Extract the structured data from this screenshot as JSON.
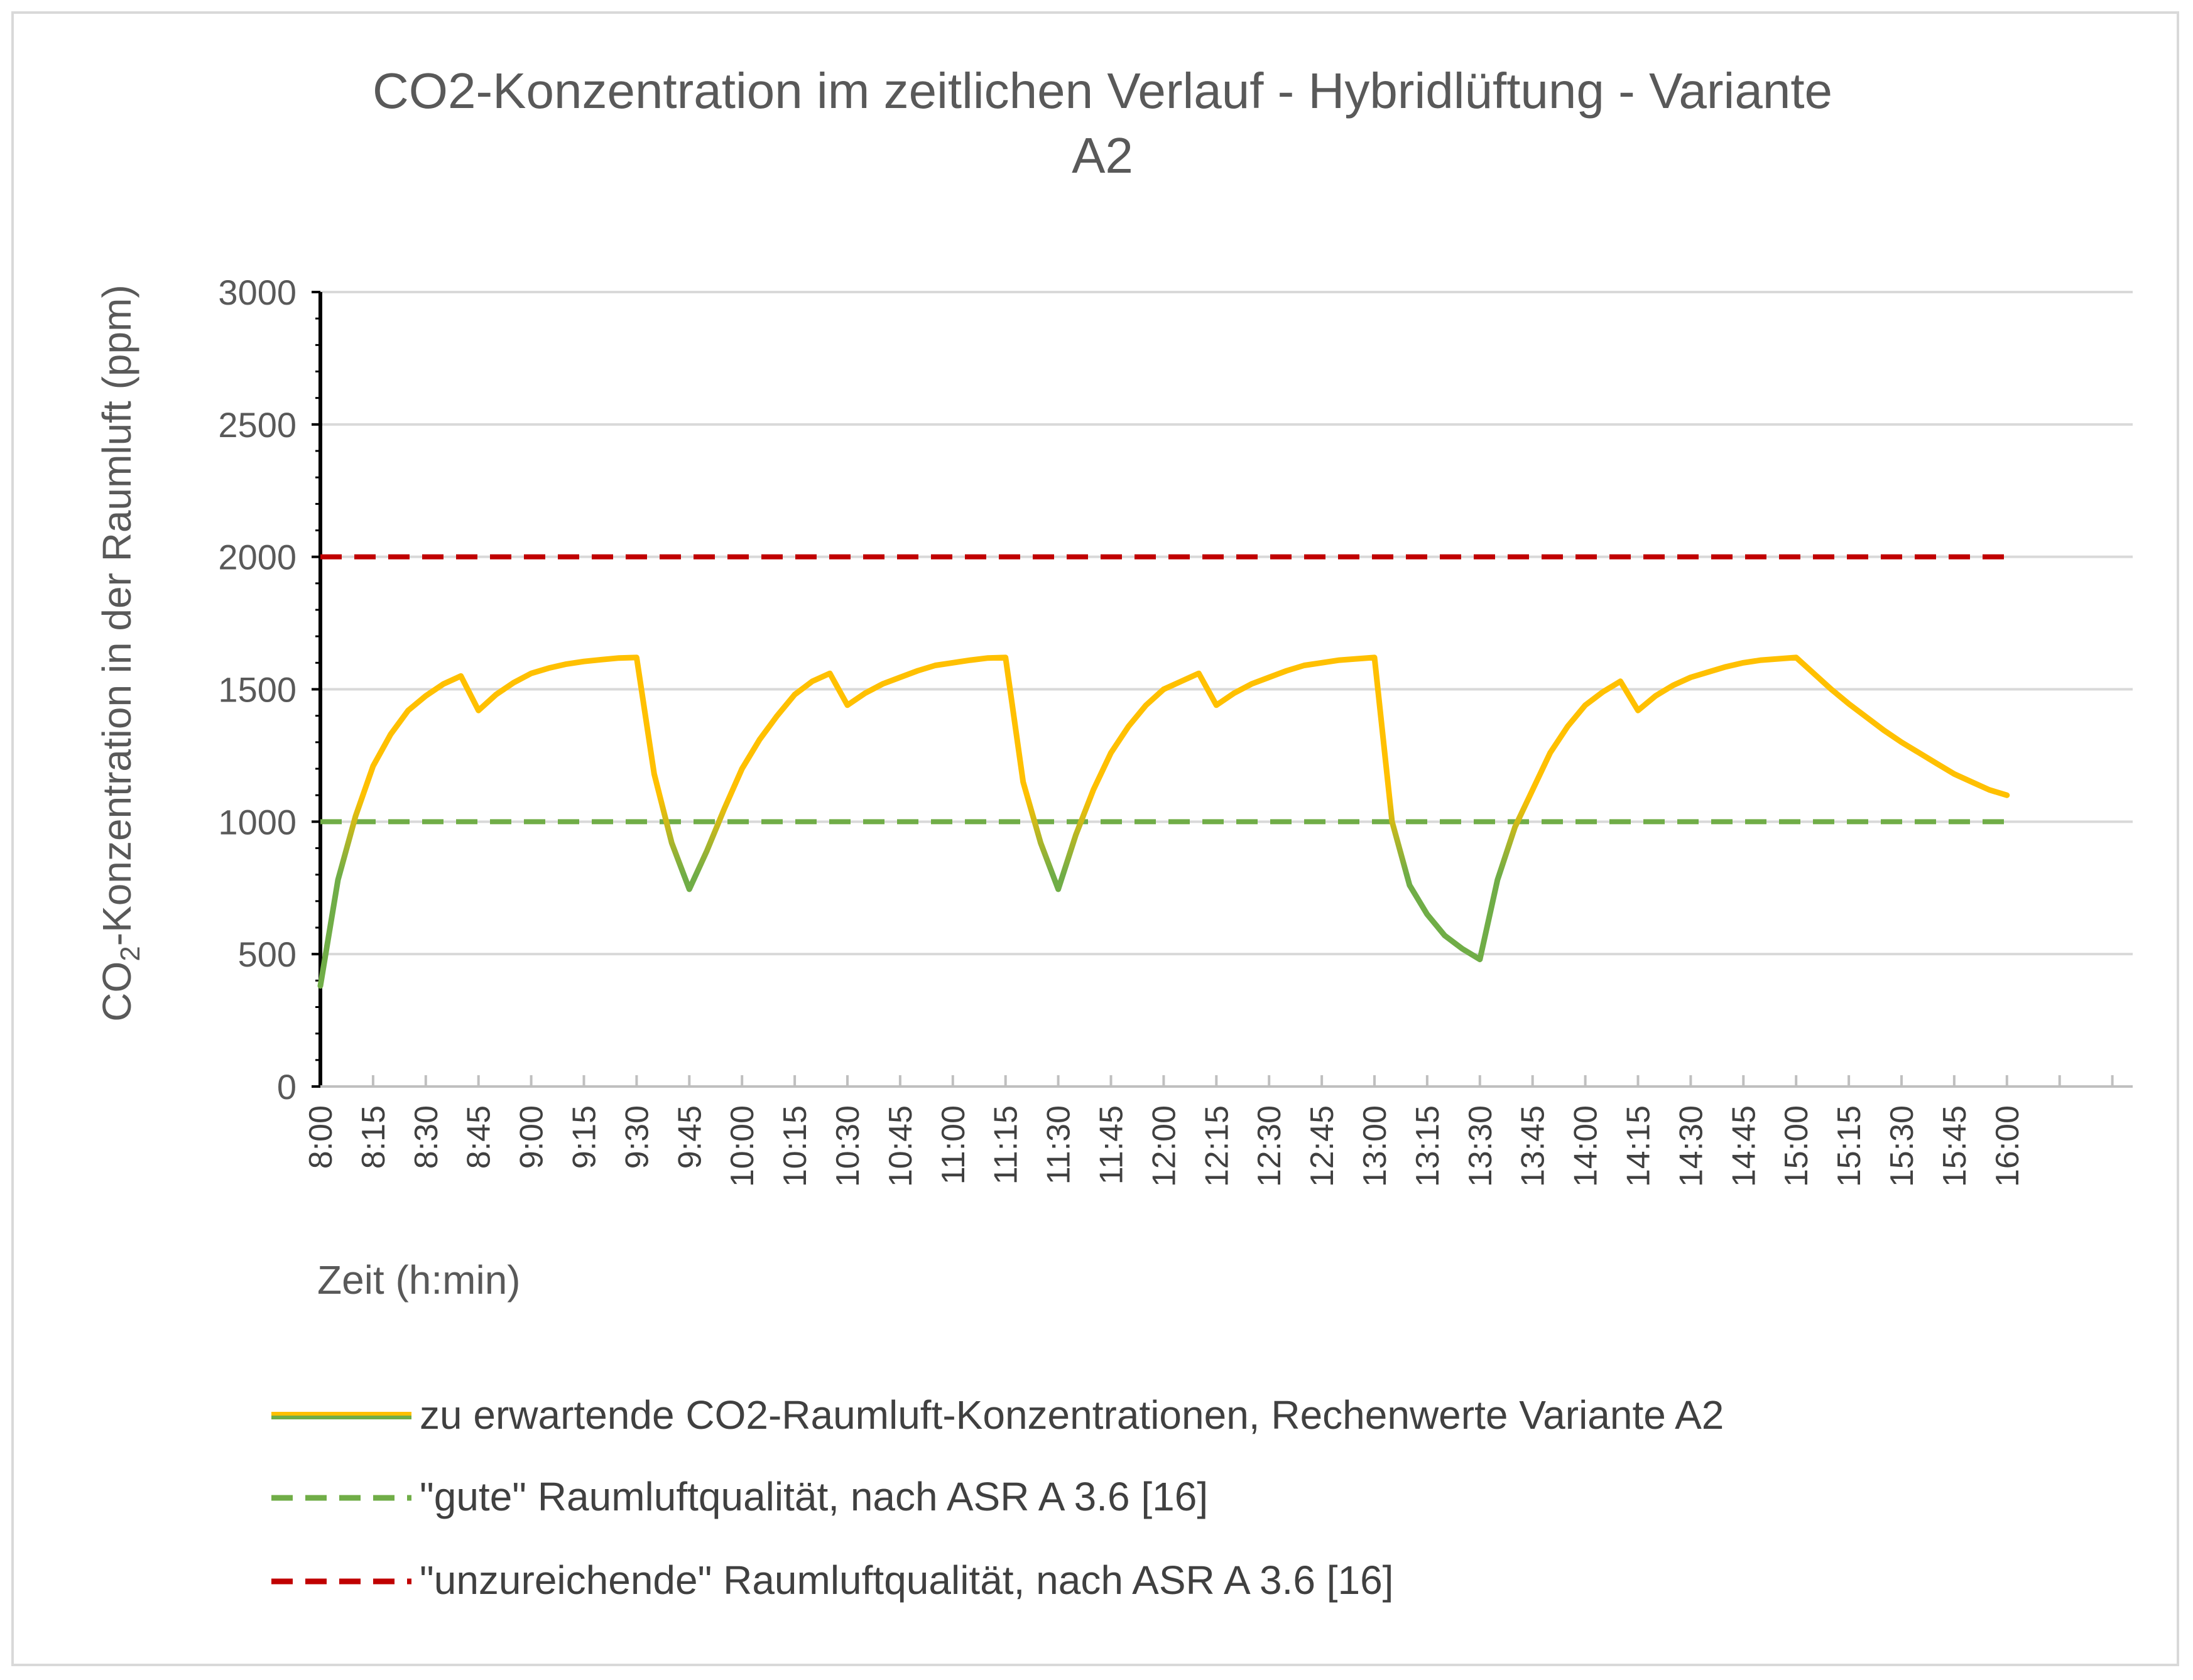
{
  "chart_data": {
    "type": "line",
    "title_lines": [
      "CO2-Konzentration im zeitlichen Verlauf - Hybridlüftung - Variante",
      "A2"
    ],
    "ylabel_prefix": "CO",
    "ylabel_sub": "2",
    "ylabel_suffix": "-Konzentration in der Raumluft (ppm)",
    "xlabel": "Zeit (h:min)",
    "ylim": [
      0,
      3000
    ],
    "yticks": [
      "0",
      "500",
      "1000",
      "1500",
      "2000",
      "2500",
      "3000"
    ],
    "x_categories": [
      "8:00",
      "8:15",
      "8:30",
      "8:45",
      "9:00",
      "9:15",
      "9:30",
      "9:45",
      "10:00",
      "10:15",
      "10:30",
      "10:45",
      "11:00",
      "11:15",
      "11:30",
      "11:45",
      "12:00",
      "12:15",
      "12:30",
      "12:45",
      "13:00",
      "13:15",
      "13:30",
      "13:45",
      "14:00",
      "14:15",
      "14:30",
      "14:45",
      "15:00",
      "15:15",
      "15:30",
      "15:45",
      "16:00"
    ],
    "grid": "horizontal",
    "legend_position": "bottom",
    "series": [
      {
        "name": "zu erwartende CO2-Raumluft-Konzentrationen, Rechenwerte Variante A2",
        "style": "solid",
        "color_high": "#ffc000",
        "color_low": "#70ad47",
        "x": [
          "8:00",
          "8:05",
          "8:10",
          "8:15",
          "8:20",
          "8:25",
          "8:30",
          "8:35",
          "8:40",
          "8:45",
          "8:50",
          "8:55",
          "9:00",
          "9:05",
          "9:10",
          "9:15",
          "9:20",
          "9:25",
          "9:30",
          "9:35",
          "9:40",
          "9:45",
          "9:50",
          "9:55",
          "10:00",
          "10:05",
          "10:10",
          "10:15",
          "10:20",
          "10:25",
          "10:30",
          "10:35",
          "10:40",
          "10:45",
          "10:50",
          "10:55",
          "11:00",
          "11:05",
          "11:10",
          "11:15",
          "11:20",
          "11:25",
          "11:30",
          "11:35",
          "11:40",
          "11:45",
          "11:50",
          "11:55",
          "12:00",
          "12:05",
          "12:10",
          "12:15",
          "12:20",
          "12:25",
          "12:30",
          "12:35",
          "12:40",
          "12:45",
          "12:50",
          "12:55",
          "13:00",
          "13:05",
          "13:10",
          "13:15",
          "13:20",
          "13:25",
          "13:30",
          "13:35",
          "13:40",
          "13:45",
          "13:50",
          "13:55",
          "14:00",
          "14:05",
          "14:10",
          "14:15",
          "14:20",
          "14:25",
          "14:30",
          "14:35",
          "14:40",
          "14:45",
          "14:50",
          "14:55",
          "15:00",
          "15:05",
          "15:10",
          "15:15",
          "15:20",
          "15:25",
          "15:30",
          "15:35",
          "15:40",
          "15:45",
          "15:50",
          "15:55",
          "16:00"
        ],
        "values": [
          380,
          780,
          1020,
          1210,
          1330,
          1420,
          1475,
          1520,
          1550,
          1420,
          1480,
          1525,
          1560,
          1580,
          1595,
          1605,
          1612,
          1618,
          1620,
          1180,
          920,
          745,
          890,
          1050,
          1200,
          1310,
          1400,
          1480,
          1530,
          1560,
          1440,
          1485,
          1520,
          1545,
          1570,
          1590,
          1600,
          1610,
          1618,
          1620,
          1150,
          920,
          745,
          950,
          1120,
          1260,
          1360,
          1440,
          1500,
          1530,
          1560,
          1440,
          1485,
          1520,
          1545,
          1570,
          1590,
          1600,
          1610,
          1615,
          1620,
          1000,
          760,
          650,
          570,
          520,
          480,
          780,
          980,
          1120,
          1260,
          1360,
          1440,
          1490,
          1530,
          1420,
          1475,
          1515,
          1545,
          1565,
          1585,
          1600,
          1610,
          1615,
          1620,
          1560,
          1500,
          1445,
          1395,
          1345,
          1300,
          1260,
          1220,
          1180,
          1150,
          1120,
          1100
        ]
      },
      {
        "name": "\"gute\" Raumluftqualität, nach ASR A 3.6 [16]",
        "style": "dashed",
        "color": "#70ad47",
        "x_range": [
          "8:00",
          "16:00"
        ],
        "value": 1000
      },
      {
        "name": "\"unzureichende\" Raumluftqualität, nach ASR A 3.6 [16]",
        "style": "dashed",
        "color": "#c00000",
        "x_range": [
          "8:00",
          "16:00"
        ],
        "value": 2000
      }
    ]
  }
}
